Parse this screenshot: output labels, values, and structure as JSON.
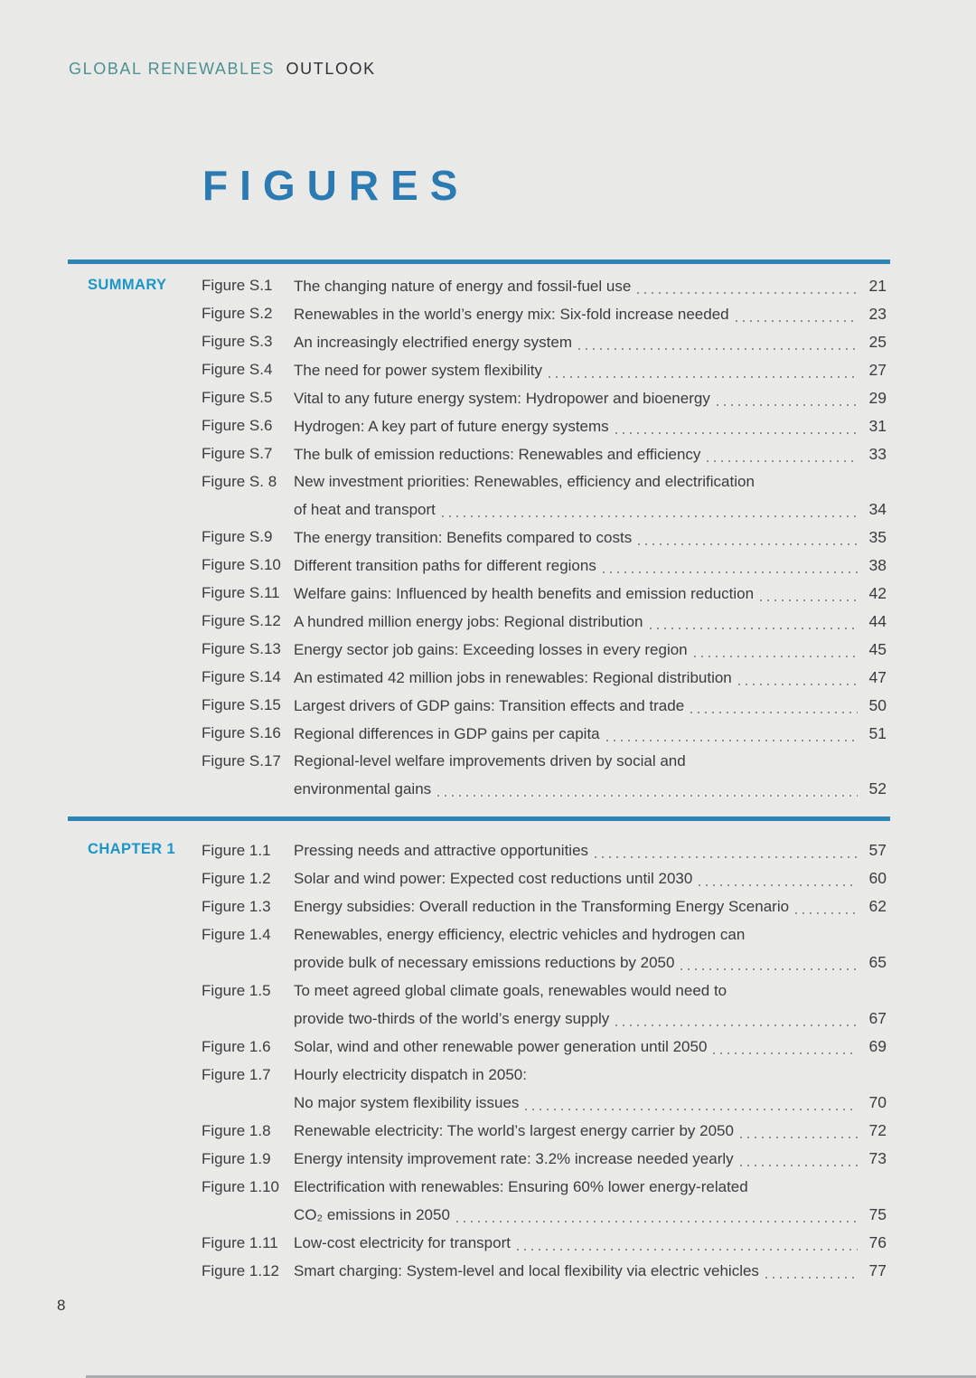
{
  "header": {
    "brand_primary": "GLOBAL RENEWABLES",
    "brand_secondary": "OUTLOOK"
  },
  "page_title": "FIGURES",
  "footer": {
    "page_number": "8"
  },
  "colors": {
    "background": "#e9eae8",
    "brand_teal": "#4f9090",
    "brand_dark": "#2f3134",
    "title_blue": "#2b7ab1",
    "section_label_blue": "#1d95c6",
    "rule_blue": "#2b84b3",
    "body_text": "#3a3c3d",
    "dot_leader_gray": "#8f8f8f"
  },
  "sections": [
    {
      "label": "SUMMARY",
      "entries": [
        {
          "label": "Figure S.1",
          "lines": [
            "The changing nature of energy and fossil-fuel use"
          ],
          "page": "21"
        },
        {
          "label": "Figure S.2",
          "lines": [
            "Renewables in the world’s energy mix: Six-fold increase needed"
          ],
          "page": "23"
        },
        {
          "label": "Figure S.3",
          "lines": [
            "An increasingly electrified energy system"
          ],
          "page": "25"
        },
        {
          "label": "Figure S.4",
          "lines": [
            "The need for power system flexibility"
          ],
          "page": "27"
        },
        {
          "label": "Figure S.5",
          "lines": [
            "Vital to any future energy system: Hydropower and bioenergy"
          ],
          "page": "29"
        },
        {
          "label": "Figure S.6",
          "lines": [
            "Hydrogen: A key part of future energy systems"
          ],
          "page": "31"
        },
        {
          "label": "Figure S.7",
          "lines": [
            "The bulk of emission reductions: Renewables and efficiency"
          ],
          "page": "33"
        },
        {
          "label": "Figure S. 8",
          "lines": [
            "New investment priorities: Renewables, efficiency and electrification",
            "of heat and transport"
          ],
          "page": "34"
        },
        {
          "label": "Figure S.9",
          "lines": [
            "The energy transition: Benefits compared to costs"
          ],
          "page": "35"
        },
        {
          "label": "Figure S.10",
          "lines": [
            "Different transition paths for different regions"
          ],
          "page": "38"
        },
        {
          "label": "Figure S.11",
          "lines": [
            "Welfare gains: Influenced by health benefits and emission reduction"
          ],
          "page": "42"
        },
        {
          "label": "Figure S.12",
          "lines": [
            "A hundred million energy jobs: Regional distribution"
          ],
          "page": "44"
        },
        {
          "label": "Figure S.13",
          "lines": [
            "Energy sector job gains: Exceeding losses in every region"
          ],
          "page": "45"
        },
        {
          "label": "Figure S.14",
          "lines": [
            "An estimated 42 million jobs in renewables: Regional distribution"
          ],
          "page": "47"
        },
        {
          "label": "Figure S.15",
          "lines": [
            "Largest drivers of GDP gains: Transition effects and trade"
          ],
          "page": "50"
        },
        {
          "label": "Figure S.16",
          "lines": [
            "Regional differences in GDP gains per capita"
          ],
          "page": "51"
        },
        {
          "label": "Figure S.17",
          "lines": [
            "Regional-level welfare improvements driven by social and",
            "environmental gains"
          ],
          "page": "52"
        }
      ]
    },
    {
      "label": "CHAPTER 1",
      "entries": [
        {
          "label": "Figure 1.1",
          "lines": [
            "Pressing needs and attractive opportunities"
          ],
          "page": "57"
        },
        {
          "label": "Figure 1.2",
          "lines": [
            "Solar and wind power: Expected cost reductions until 2030"
          ],
          "page": "60"
        },
        {
          "label": "Figure 1.3",
          "lines": [
            "Energy subsidies: Overall reduction in the Transforming Energy Scenario"
          ],
          "page": "62"
        },
        {
          "label": "Figure 1.4",
          "lines": [
            "Renewables, energy efficiency, electric vehicles and hydrogen can",
            "provide bulk of necessary emissions reductions by 2050"
          ],
          "page": "65"
        },
        {
          "label": "Figure 1.5",
          "lines": [
            "To meet agreed global climate goals, renewables would need to",
            "provide two-thirds of the world’s energy supply"
          ],
          "page": "67"
        },
        {
          "label": "Figure 1.6",
          "lines": [
            "Solar, wind and other renewable power generation until 2050"
          ],
          "page": "69"
        },
        {
          "label": "Figure 1.7",
          "lines": [
            "Hourly electricity dispatch in 2050:",
            "No major system flexibility issues"
          ],
          "page": "70"
        },
        {
          "label": "Figure 1.8",
          "lines": [
            "Renewable electricity: The world’s largest energy carrier by 2050"
          ],
          "page": "72"
        },
        {
          "label": "Figure 1.9",
          "lines": [
            "Energy intensity improvement rate: 3.2% increase needed yearly"
          ],
          "page": "73"
        },
        {
          "label": "Figure 1.10",
          "lines": [
            "Electrification with renewables: Ensuring 60% lower energy-related",
            "CO₂ emissions in 2050"
          ],
          "page": "75"
        },
        {
          "label": "Figure 1.11",
          "lines": [
            "Low-cost electricity for transport"
          ],
          "page": "76"
        },
        {
          "label": "Figure 1.12",
          "lines": [
            "Smart charging: System-level and local flexibility via electric vehicles"
          ],
          "page": "77"
        }
      ]
    }
  ]
}
